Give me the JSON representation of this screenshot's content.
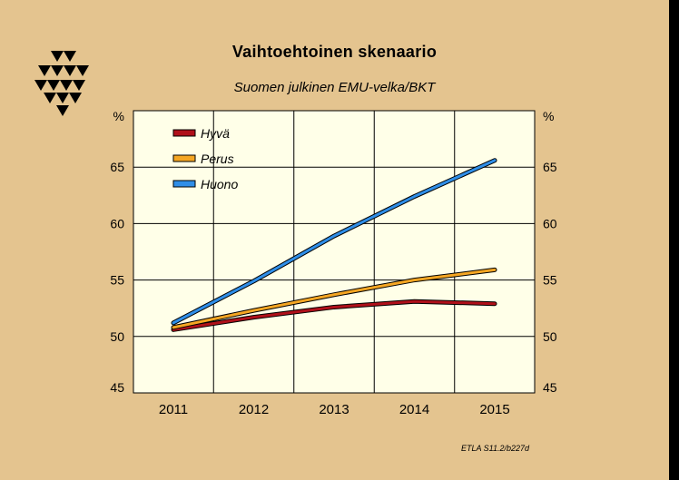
{
  "title": "Vaihtoehtoinen skenaario",
  "subtitle": "Suomen julkinen EMU-velka/BKT",
  "source_note": "ETLA S11.2/b227d",
  "colors": {
    "background": "#e4c48f",
    "plot_background": "#ffffe8",
    "hyva": "#b0101a",
    "perus": "#f5a623",
    "huono": "#2f8ee8"
  },
  "chart_data": {
    "type": "line",
    "x": [
      2011,
      2012,
      2013,
      2014,
      2015
    ],
    "ylim": [
      45,
      70
    ],
    "y_ticks": [
      45,
      50,
      55,
      60,
      65
    ],
    "y_unit_label_left": "%",
    "y_unit_label_right": "%",
    "grid": true,
    "legend_position": "top-left",
    "series": [
      {
        "name": "Hyvä",
        "color": "#b0101a",
        "values": [
          50.6,
          51.7,
          52.6,
          53.1,
          52.9
        ]
      },
      {
        "name": "Perus",
        "color": "#f5a623",
        "values": [
          50.8,
          52.3,
          53.7,
          55.0,
          55.9
        ]
      },
      {
        "name": "Huono",
        "color": "#2f8ee8",
        "values": [
          51.2,
          54.9,
          58.9,
          62.4,
          65.6
        ]
      }
    ]
  }
}
